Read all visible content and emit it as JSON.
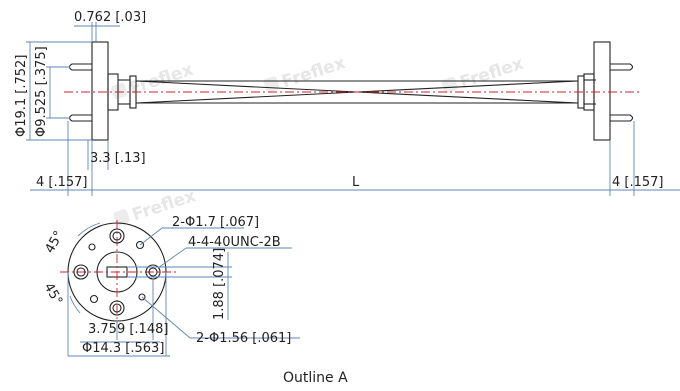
{
  "watermark": "Freflex",
  "side_view": {
    "dim_flange_thickness": "0.762 [.03]",
    "dim_flange_diameter": "Φ19.1 [.752]",
    "dim_pin_circle": "Φ9.525 [.375]",
    "dim_step": "3.3 [.13]",
    "dim_left_pin": "4 [.157]",
    "dim_length": "L",
    "dim_right_pin": "4 [.157]"
  },
  "end_view": {
    "angle_top": "45°",
    "angle_bottom": "45°",
    "dim_alignment_holes": "2-Φ1.7 [.067]",
    "dim_thread": "4-4-40UNC-2B",
    "dim_height": "1.88 [.074]",
    "dim_offset": "3.759 [.148]",
    "dim_circle": "Φ14.3 [.563]",
    "dim_small_holes": "2-Φ1.56 [.061]"
  },
  "caption": "Outline A"
}
